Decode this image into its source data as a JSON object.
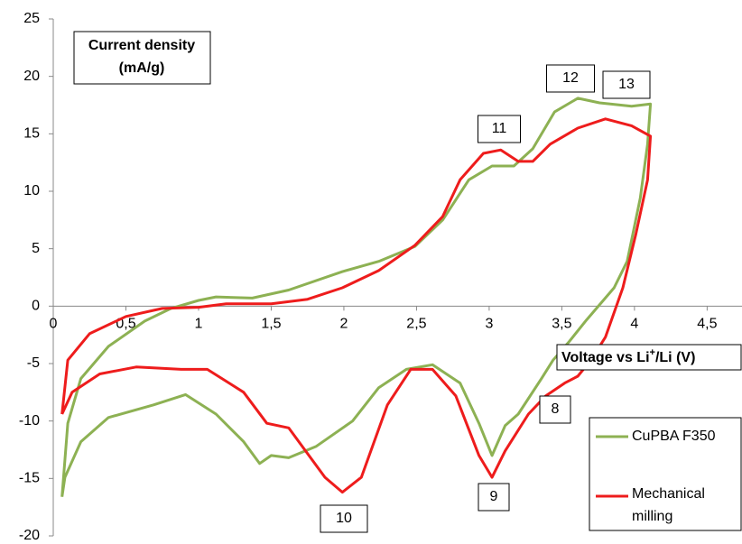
{
  "chart_data": {
    "type": "line",
    "y_label": [
      "Current density",
      "(mA/g)"
    ],
    "x_label": [
      "Voltage vs Li",
      "+",
      "/Li (V)"
    ],
    "annotations": [
      "8",
      "9",
      "10",
      "11",
      "12",
      "13"
    ],
    "xlim": [
      0,
      4.74
    ],
    "ylim": [
      -20,
      25
    ],
    "xticks": [
      0,
      {
        "value": 0.5,
        "label": "0,5"
      },
      1,
      {
        "value": 1.5,
        "label": "1,5"
      },
      2,
      {
        "value": 2.5,
        "label": "2,5"
      },
      3,
      {
        "value": 3.5,
        "label": "3,5"
      },
      4,
      {
        "value": 4.5,
        "label": "4,5"
      }
    ],
    "yticks": [
      -20,
      -15,
      -10,
      -5,
      0,
      5,
      10,
      15,
      20,
      25
    ],
    "grid": false,
    "series": [
      {
        "name": "CuPBA F350",
        "color": "#8db153",
        "x": [
          0.06,
          0.1,
          0.19,
          0.38,
          0.63,
          0.81,
          1.0,
          1.12,
          1.37,
          1.62,
          1.99,
          2.24,
          2.49,
          2.68,
          2.86,
          3.02,
          3.17,
          3.3,
          3.45,
          3.61,
          3.76,
          3.98,
          4.11,
          4.09,
          4.04,
          3.95,
          3.86,
          3.67,
          3.55,
          3.44,
          3.36,
          3.2,
          3.11,
          3.02,
          2.93,
          2.8,
          2.61,
          2.43,
          2.24,
          2.06,
          1.81,
          1.62,
          1.5,
          1.42,
          1.31,
          1.12,
          0.91,
          0.69,
          0.38,
          0.19,
          0.08,
          0.06
        ],
        "values": [
          -16.6,
          -10.2,
          -6.3,
          -3.5,
          -1.3,
          -0.2,
          0.5,
          0.8,
          0.7,
          1.4,
          3.0,
          3.9,
          5.2,
          7.5,
          11.0,
          12.2,
          12.2,
          13.7,
          16.9,
          18.1,
          17.7,
          17.4,
          17.6,
          14.1,
          9.4,
          3.9,
          1.6,
          -1.2,
          -3.1,
          -4.7,
          -6.3,
          -9.4,
          -10.4,
          -13.0,
          -10.2,
          -6.7,
          -5.1,
          -5.5,
          -7.1,
          -10.0,
          -12.2,
          -13.2,
          -13.0,
          -13.7,
          -11.8,
          -9.4,
          -7.7,
          -8.6,
          -9.7,
          -11.8,
          -14.9,
          -16.6
        ]
      },
      {
        "name": "Mechanical milling",
        "color": "#ee1c1c",
        "x": [
          0.06,
          0.1,
          0.25,
          0.5,
          0.75,
          1.0,
          1.19,
          1.5,
          1.75,
          1.99,
          2.24,
          2.49,
          2.68,
          2.8,
          2.96,
          3.08,
          3.2,
          3.3,
          3.42,
          3.61,
          3.8,
          3.98,
          4.11,
          4.09,
          4.01,
          3.92,
          3.8,
          3.7,
          3.61,
          3.52,
          3.39,
          3.27,
          3.11,
          3.02,
          2.93,
          2.77,
          2.61,
          2.46,
          2.3,
          2.12,
          1.99,
          1.87,
          1.62,
          1.47,
          1.31,
          1.06,
          0.88,
          0.57,
          0.32,
          0.13,
          0.06
        ],
        "values": [
          -9.4,
          -4.7,
          -2.4,
          -0.9,
          -0.2,
          -0.1,
          0.2,
          0.2,
          0.6,
          1.6,
          3.1,
          5.3,
          7.8,
          11.0,
          13.3,
          13.6,
          12.6,
          12.6,
          14.1,
          15.5,
          16.3,
          15.7,
          14.8,
          11.0,
          6.3,
          1.6,
          -2.7,
          -4.7,
          -6.1,
          -6.7,
          -7.8,
          -9.4,
          -12.6,
          -14.9,
          -13.0,
          -7.8,
          -5.5,
          -5.5,
          -8.6,
          -14.9,
          -16.2,
          -14.9,
          -10.6,
          -10.2,
          -7.5,
          -5.5,
          -5.5,
          -5.3,
          -5.9,
          -7.5,
          -9.4
        ]
      }
    ]
  }
}
